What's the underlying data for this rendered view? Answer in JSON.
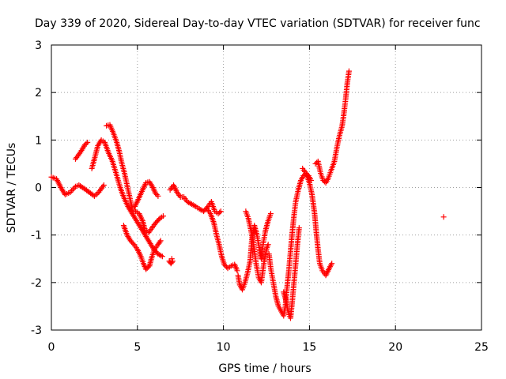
{
  "chart_data": {
    "type": "scatter",
    "title": "Day 339 of 2020, Sidereal Day-to-day VTEC variation (SDTVAR) for receiver func",
    "xlabel": "GPS time / hours",
    "ylabel": "SDTVAR / TECUs",
    "xlim": [
      0,
      25
    ],
    "ylim": [
      -3,
      3
    ],
    "x_ticks": [
      "0",
      "5",
      "10",
      "15",
      "20",
      "25"
    ],
    "y_ticks": [
      "-3",
      "-2",
      "-1",
      "0",
      "1",
      "2",
      "3"
    ],
    "grid": true,
    "marker": "plus",
    "marker_color": "#ff0000",
    "series": [
      {
        "segments": [
          [
            [
              0.0,
              0.22
            ],
            [
              0.3,
              0.18
            ],
            [
              0.55,
              0.0
            ],
            [
              0.8,
              -0.15
            ],
            [
              1.1,
              -0.1
            ],
            [
              1.4,
              0.02
            ],
            [
              1.6,
              0.05
            ],
            [
              1.9,
              -0.02
            ],
            [
              2.2,
              -0.1
            ],
            [
              2.5,
              -0.18
            ],
            [
              2.75,
              -0.1
            ],
            [
              3.05,
              0.05
            ]
          ],
          [
            [
              1.4,
              0.6
            ],
            [
              1.7,
              0.75
            ],
            [
              1.95,
              0.9
            ],
            [
              2.1,
              0.95
            ]
          ],
          [
            [
              2.35,
              0.4
            ],
            [
              2.5,
              0.6
            ],
            [
              2.7,
              0.88
            ],
            [
              2.9,
              1.0
            ],
            [
              3.1,
              0.95
            ],
            [
              3.3,
              0.75
            ],
            [
              3.55,
              0.55
            ],
            [
              3.8,
              0.25
            ],
            [
              4.0,
              0.0
            ],
            [
              4.2,
              -0.2
            ],
            [
              4.45,
              -0.4
            ],
            [
              4.7,
              -0.55
            ],
            [
              4.95,
              -0.7
            ],
            [
              5.2,
              -0.85
            ],
            [
              5.45,
              -1.0
            ],
            [
              5.7,
              -1.15
            ],
            [
              5.95,
              -1.3
            ],
            [
              6.2,
              -1.4
            ],
            [
              6.45,
              -1.45
            ]
          ],
          [
            [
              3.2,
              1.3
            ],
            [
              3.4,
              1.32
            ],
            [
              3.6,
              1.15
            ],
            [
              3.8,
              0.95
            ],
            [
              3.95,
              0.75
            ],
            [
              4.1,
              0.5
            ],
            [
              4.25,
              0.3
            ],
            [
              4.4,
              0.05
            ],
            [
              4.55,
              -0.2
            ],
            [
              4.7,
              -0.45
            ],
            [
              4.9,
              -0.5
            ],
            [
              5.1,
              -0.55
            ],
            [
              5.3,
              -0.7
            ],
            [
              5.45,
              -0.9
            ],
            [
              5.65,
              -0.95
            ],
            [
              5.85,
              -0.85
            ],
            [
              6.05,
              -0.75
            ],
            [
              6.3,
              -0.65
            ],
            [
              6.5,
              -0.6
            ]
          ],
          [
            [
              4.2,
              -0.8
            ],
            [
              4.4,
              -1.0
            ],
            [
              4.6,
              -1.12
            ],
            [
              4.8,
              -1.2
            ],
            [
              5.0,
              -1.3
            ],
            [
              5.2,
              -1.45
            ],
            [
              5.35,
              -1.6
            ],
            [
              5.5,
              -1.72
            ],
            [
              5.7,
              -1.65
            ],
            [
              5.85,
              -1.45
            ],
            [
              6.0,
              -1.3
            ],
            [
              6.2,
              -1.2
            ],
            [
              6.35,
              -1.12
            ]
          ],
          [
            [
              4.85,
              -0.4
            ],
            [
              5.05,
              -0.25
            ],
            [
              5.3,
              -0.05
            ],
            [
              5.5,
              0.1
            ],
            [
              5.7,
              0.12
            ],
            [
              5.9,
              0.0
            ],
            [
              6.05,
              -0.12
            ],
            [
              6.2,
              -0.18
            ]
          ],
          [
            [
              6.85,
              -1.55
            ],
            [
              6.95,
              -1.6
            ],
            [
              7.05,
              -1.55
            ],
            [
              7.0,
              -1.5
            ]
          ],
          [
            [
              6.9,
              -0.05
            ],
            [
              7.1,
              0.05
            ],
            [
              7.3,
              -0.1
            ],
            [
              7.5,
              -0.2
            ],
            [
              7.7,
              -0.2
            ],
            [
              7.9,
              -0.3
            ],
            [
              8.15,
              -0.35
            ],
            [
              8.4,
              -0.4
            ],
            [
              8.6,
              -0.45
            ],
            [
              8.85,
              -0.5
            ],
            [
              9.1,
              -0.4
            ],
            [
              9.3,
              -0.3
            ],
            [
              9.5,
              -0.5
            ],
            [
              9.7,
              -0.55
            ],
            [
              9.85,
              -0.5
            ]
          ],
          [
            [
              9.05,
              -0.45
            ],
            [
              9.25,
              -0.55
            ],
            [
              9.45,
              -0.75
            ],
            [
              9.6,
              -1.0
            ],
            [
              9.75,
              -1.2
            ],
            [
              9.9,
              -1.45
            ],
            [
              10.05,
              -1.62
            ],
            [
              10.25,
              -1.7
            ],
            [
              10.45,
              -1.65
            ],
            [
              10.65,
              -1.62
            ],
            [
              10.8,
              -1.75
            ]
          ],
          [
            [
              10.85,
              -1.85
            ],
            [
              10.95,
              -2.05
            ],
            [
              11.1,
              -2.15
            ],
            [
              11.25,
              -2.0
            ],
            [
              11.4,
              -1.8
            ],
            [
              11.55,
              -1.55
            ],
            [
              11.65,
              -1.1
            ],
            [
              11.8,
              -0.8
            ],
            [
              11.95,
              -1.0
            ],
            [
              12.1,
              -1.3
            ],
            [
              12.2,
              -1.5
            ],
            [
              12.3,
              -1.2
            ],
            [
              12.45,
              -0.9
            ],
            [
              12.6,
              -0.7
            ],
            [
              12.75,
              -0.55
            ]
          ],
          [
            [
              11.3,
              -0.5
            ],
            [
              11.45,
              -0.65
            ],
            [
              11.6,
              -0.9
            ],
            [
              11.75,
              -1.2
            ],
            [
              11.9,
              -1.6
            ],
            [
              12.05,
              -1.9
            ],
            [
              12.2,
              -2.0
            ],
            [
              12.35,
              -1.6
            ],
            [
              12.5,
              -1.3
            ],
            [
              12.6,
              -1.2
            ]
          ],
          [
            [
              12.65,
              -1.4
            ],
            [
              12.75,
              -1.7
            ],
            [
              12.9,
              -2.0
            ],
            [
              13.05,
              -2.3
            ],
            [
              13.2,
              -2.5
            ],
            [
              13.35,
              -2.6
            ],
            [
              13.5,
              -2.7
            ],
            [
              13.6,
              -2.5
            ],
            [
              13.7,
              -2.1
            ],
            [
              13.8,
              -1.75
            ],
            [
              13.9,
              -1.35
            ],
            [
              14.0,
              -0.95
            ],
            [
              14.1,
              -0.6
            ],
            [
              14.2,
              -0.3
            ],
            [
              14.35,
              -0.05
            ],
            [
              14.5,
              0.15
            ],
            [
              14.65,
              0.25
            ],
            [
              14.8,
              0.3
            ],
            [
              14.95,
              0.25
            ],
            [
              15.1,
              0.15
            ]
          ],
          [
            [
              13.5,
              -2.2
            ],
            [
              13.65,
              -2.4
            ],
            [
              13.75,
              -2.6
            ],
            [
              13.9,
              -2.75
            ],
            [
              14.0,
              -2.4
            ],
            [
              14.1,
              -2.0
            ],
            [
              14.2,
              -1.6
            ],
            [
              14.3,
              -1.2
            ],
            [
              14.4,
              -0.85
            ]
          ],
          [
            [
              14.6,
              0.4
            ],
            [
              14.8,
              0.3
            ],
            [
              15.0,
              0.1
            ],
            [
              15.15,
              -0.15
            ],
            [
              15.3,
              -0.55
            ],
            [
              15.4,
              -0.95
            ],
            [
              15.5,
              -1.3
            ],
            [
              15.6,
              -1.6
            ],
            [
              15.75,
              -1.75
            ],
            [
              15.95,
              -1.85
            ],
            [
              16.15,
              -1.7
            ],
            [
              16.3,
              -1.6
            ]
          ],
          [
            [
              15.35,
              0.5
            ],
            [
              15.5,
              0.55
            ],
            [
              15.65,
              0.3
            ],
            [
              15.8,
              0.15
            ],
            [
              15.95,
              0.1
            ],
            [
              16.1,
              0.2
            ],
            [
              16.25,
              0.35
            ],
            [
              16.45,
              0.55
            ],
            [
              16.6,
              0.85
            ],
            [
              16.75,
              1.1
            ],
            [
              16.9,
              1.3
            ],
            [
              17.0,
              1.55
            ],
            [
              17.1,
              1.85
            ],
            [
              17.2,
              2.2
            ],
            [
              17.3,
              2.45
            ]
          ],
          [
            [
              22.8,
              -0.62
            ]
          ]
        ]
      }
    ]
  }
}
